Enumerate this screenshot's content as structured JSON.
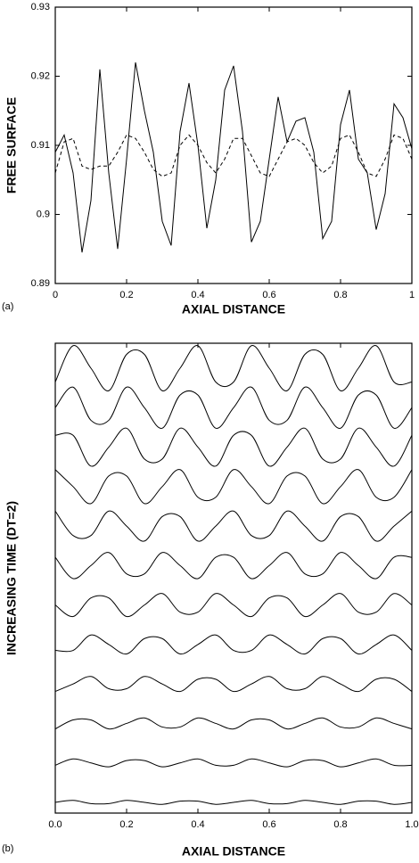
{
  "chart_data": [
    {
      "type": "line",
      "panel": "(a)",
      "xlabel": "AXIAL DISTANCE",
      "ylabel": "FREE SURFACE",
      "x": [
        0,
        0.025,
        0.05,
        0.075,
        0.1,
        0.125,
        0.15,
        0.175,
        0.2,
        0.225,
        0.25,
        0.275,
        0.3,
        0.325,
        0.35,
        0.375,
        0.4,
        0.425,
        0.45,
        0.475,
        0.5,
        0.525,
        0.55,
        0.575,
        0.6,
        0.625,
        0.65,
        0.675,
        0.7,
        0.725,
        0.75,
        0.775,
        0.8,
        0.825,
        0.85,
        0.875,
        0.9,
        0.925,
        0.95,
        0.975,
        1
      ],
      "series": [
        {
          "color": "#000000",
          "linestyle": "solid",
          "values": [
            0.909,
            0.9115,
            0.906,
            0.8945,
            0.902,
            0.921,
            0.906,
            0.895,
            0.908,
            0.922,
            0.915,
            0.909,
            0.899,
            0.8955,
            0.912,
            0.919,
            0.91,
            0.898,
            0.905,
            0.918,
            0.9215,
            0.912,
            0.896,
            0.899,
            0.908,
            0.917,
            0.9105,
            0.9135,
            0.914,
            0.909,
            0.8965,
            0.899,
            0.913,
            0.918,
            0.908,
            0.906,
            0.8978,
            0.903,
            0.916,
            0.914,
            0.9095
          ]
        },
        {
          "color": "#000000",
          "linestyle": "dashed",
          "values": [
            0.906,
            0.9105,
            0.911,
            0.907,
            0.9065,
            0.907,
            0.907,
            0.909,
            0.9115,
            0.911,
            0.909,
            0.9065,
            0.9055,
            0.906,
            0.91,
            0.9115,
            0.91,
            0.9075,
            0.906,
            0.908,
            0.911,
            0.911,
            0.9085,
            0.906,
            0.9055,
            0.908,
            0.9105,
            0.911,
            0.91,
            0.9075,
            0.906,
            0.907,
            0.911,
            0.9115,
            0.909,
            0.906,
            0.9055,
            0.908,
            0.9115,
            0.911,
            0.908
          ]
        }
      ],
      "xlim": [
        0,
        1
      ],
      "xticks": [
        0,
        0.2,
        0.4,
        0.6,
        0.8,
        1
      ],
      "ylim": [
        0.89,
        0.93
      ],
      "yticks": [
        0.89,
        0.9,
        0.91,
        0.92,
        0.93
      ]
    },
    {
      "type": "waterfall",
      "panel": "(b)",
      "xlabel": "AXIAL DISTANCE",
      "ylabel": "INCREASING TIME (DT=2)",
      "x": [
        0,
        0.05,
        0.1,
        0.15,
        0.2,
        0.25,
        0.3,
        0.35,
        0.4,
        0.45,
        0.5,
        0.55,
        0.6,
        0.65,
        0.7,
        0.75,
        0.8,
        0.85,
        0.9,
        0.95,
        1
      ],
      "series": [
        {
          "color": "#000000",
          "values": [
            0,
            0.05,
            -0.03,
            -0.03,
            0.05,
            0,
            -0.05,
            0.03,
            0.03,
            -0.05,
            0,
            0.05,
            -0.03,
            -0.03,
            0.05,
            0,
            -0.05,
            0.03,
            0.03,
            -0.05,
            0
          ]
        },
        {
          "color": "#000000",
          "values": [
            -0.06,
            0.1,
            0,
            -0.1,
            0.06,
            0.06,
            -0.1,
            0,
            0.1,
            -0.06,
            -0.06,
            0.1,
            0,
            -0.1,
            0.06,
            0.06,
            -0.1,
            0,
            0.1,
            -0.06,
            -0.06
          ]
        },
        {
          "color": "#000000",
          "values": [
            -0.14,
            0.09,
            0.09,
            -0.14,
            0,
            0.14,
            -0.09,
            -0.09,
            0.14,
            0,
            -0.14,
            0.09,
            0.09,
            -0.14,
            0,
            0.14,
            -0.09,
            -0.09,
            0.14,
            0,
            -0.14
          ]
        },
        {
          "color": "#000000",
          "values": [
            -0.19,
            0,
            0.19,
            -0.12,
            -0.12,
            0.19,
            0,
            -0.19,
            0.12,
            0.12,
            -0.19,
            0,
            0.19,
            -0.12,
            -0.12,
            0.19,
            0,
            -0.19,
            0.12,
            0.12,
            -0.19
          ]
        },
        {
          "color": "#000000",
          "values": [
            -0.15,
            -0.15,
            0.24,
            0,
            -0.24,
            0.15,
            0.15,
            -0.24,
            0,
            0.24,
            -0.15,
            -0.15,
            0.24,
            0,
            -0.24,
            0.15,
            0.15,
            -0.24,
            0,
            0.24,
            -0.15
          ]
        },
        {
          "color": "#000000",
          "values": [
            0,
            -0.29,
            0.18,
            0.18,
            -0.29,
            0,
            0.29,
            -0.18,
            -0.18,
            0.29,
            0,
            -0.29,
            0.18,
            0.18,
            -0.29,
            0,
            0.29,
            -0.18,
            -0.18,
            0.29,
            0
          ]
        },
        {
          "color": "#000000",
          "values": [
            0.21,
            -0.33,
            0,
            0.33,
            -0.21,
            -0.21,
            0.33,
            0,
            -0.33,
            0.21,
            0.21,
            -0.33,
            0,
            0.33,
            -0.21,
            -0.21,
            0.33,
            0,
            -0.33,
            0.21,
            0.21
          ]
        },
        {
          "color": "#000000",
          "values": [
            0.38,
            -0.24,
            -0.24,
            0.38,
            0,
            -0.38,
            0.24,
            0.24,
            -0.38,
            0,
            0.38,
            -0.24,
            -0.24,
            0.38,
            0,
            -0.38,
            0.24,
            0.24,
            -0.38,
            0,
            0.38
          ]
        },
        {
          "color": "#000000",
          "values": [
            0.43,
            0,
            -0.43,
            0.27,
            0.27,
            -0.43,
            0,
            0.43,
            -0.27,
            -0.27,
            0.43,
            0,
            -0.43,
            0.27,
            0.27,
            -0.43,
            0,
            0.43,
            -0.27,
            -0.27,
            0.43
          ]
        },
        {
          "color": "#000000",
          "values": [
            0.3,
            0.3,
            -0.48,
            0,
            0.48,
            -0.3,
            -0.3,
            0.48,
            0,
            -0.48,
            0.3,
            0.3,
            -0.48,
            0,
            0.48,
            -0.3,
            -0.3,
            0.48,
            0,
            -0.48,
            0.3
          ]
        },
        {
          "color": "#000000",
          "values": [
            0,
            0.52,
            -0.32,
            -0.32,
            0.52,
            0,
            -0.52,
            0.32,
            0.32,
            -0.52,
            0,
            0.52,
            -0.32,
            -0.32,
            0.52,
            0,
            -0.52,
            0.32,
            0.32,
            -0.52,
            0
          ]
        },
        {
          "color": "#000000",
          "values": [
            -0.35,
            0.57,
            0,
            -0.57,
            0.35,
            0.35,
            -0.57,
            0,
            0.57,
            -0.35,
            -0.35,
            0.57,
            0,
            -0.57,
            0.35,
            0.35,
            -0.57,
            0,
            0.57,
            -0.35,
            -0.35
          ]
        }
      ],
      "xlim": [
        0,
        1
      ],
      "xticks": [
        {
          "value": 0,
          "label": "0.0"
        },
        0.2,
        0.4,
        0.6,
        0.8,
        {
          "value": 1,
          "label": "1.0"
        }
      ]
    }
  ]
}
